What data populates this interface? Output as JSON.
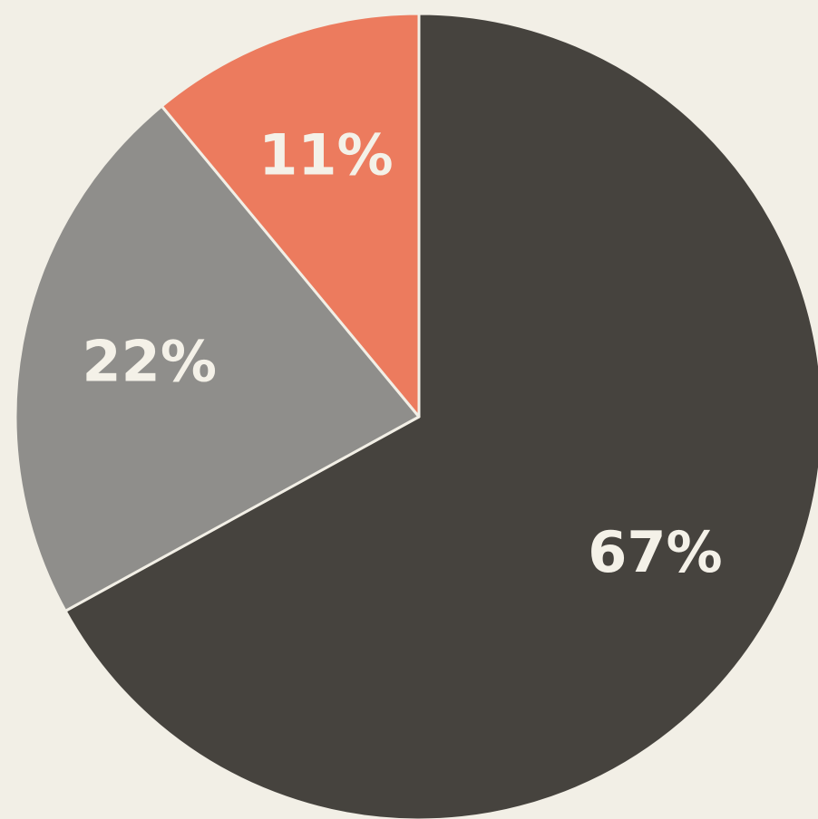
{
  "chart_data": {
    "type": "pie",
    "values": [
      67,
      22,
      11
    ],
    "value_labels": [
      "67%",
      "22%",
      "11%"
    ],
    "colors": [
      "#46433e",
      "#8f8e8b",
      "#ec7b5e"
    ],
    "start_angle": 0,
    "direction": "clockwise"
  }
}
